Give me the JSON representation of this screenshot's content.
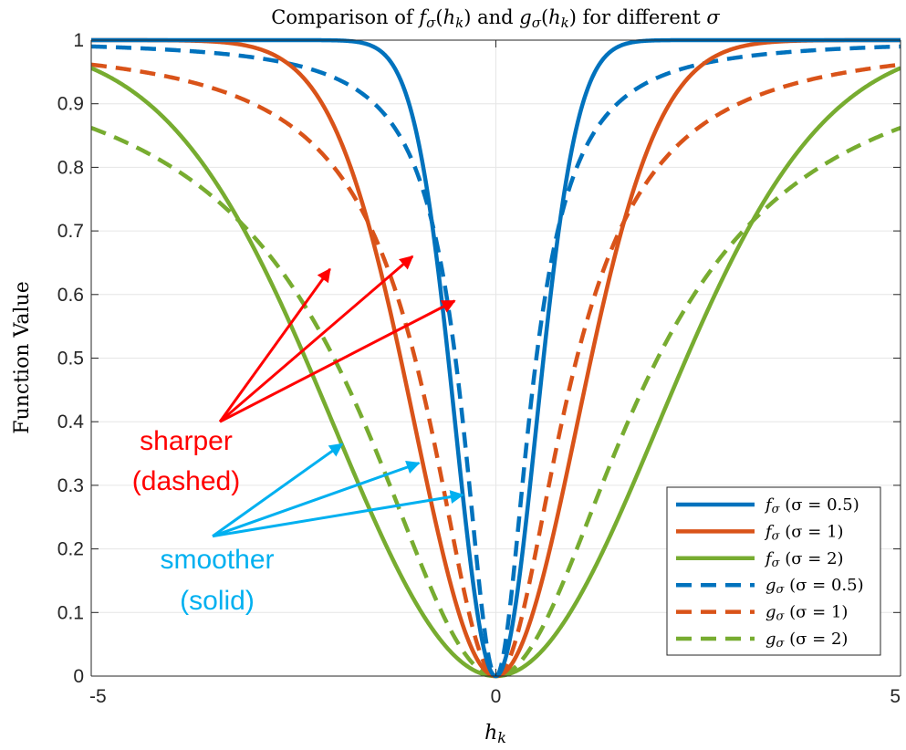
{
  "chart_data": {
    "type": "line",
    "title": "Comparison of fσ(hk) and gσ(hk) for different σ",
    "xlabel": "hk",
    "ylabel": "Function Value",
    "xlim": [
      -5,
      5
    ],
    "ylim": [
      0,
      1
    ],
    "xticks": [
      "-5",
      "0",
      "5"
    ],
    "yticks": [
      "0",
      "0.1",
      "0.2",
      "0.3",
      "0.4",
      "0.5",
      "0.6",
      "0.7",
      "0.8",
      "0.9",
      "1"
    ],
    "grid": true,
    "legend_position": "bottom-right",
    "series": [
      {
        "name": "fσ (σ = 0.5)",
        "family": "f",
        "sigma": 0.5,
        "color": "#0072BD",
        "style": "solid"
      },
      {
        "name": "fσ (σ = 1)",
        "family": "f",
        "sigma": 1,
        "color": "#D95319",
        "style": "solid"
      },
      {
        "name": "fσ (σ = 2)",
        "family": "f",
        "sigma": 2,
        "color": "#77AC30",
        "style": "solid"
      },
      {
        "name": "gσ (σ = 0.5)",
        "family": "g",
        "sigma": 0.5,
        "color": "#0072BD",
        "style": "dashed"
      },
      {
        "name": "gσ (σ = 1)",
        "family": "g",
        "sigma": 1,
        "color": "#D95319",
        "style": "dashed"
      },
      {
        "name": "gσ (σ = 2)",
        "family": "g",
        "sigma": 2,
        "color": "#77AC30",
        "style": "dashed"
      }
    ],
    "annotations": [
      {
        "text_lines": [
          "sharper",
          "(dashed)"
        ],
        "color": "#FF0000",
        "arrow_tail": [
          -3.41,
          0.4
        ],
        "arrow_heads": [
          [
            -2.05,
            0.64
          ],
          [
            -1.03,
            0.66
          ],
          [
            -0.51,
            0.59
          ]
        ]
      },
      {
        "text_lines": [
          "smoother",
          "(solid)"
        ],
        "color": "#00B0F0",
        "arrow_tail": [
          -3.5,
          0.22
        ],
        "arrow_heads": [
          [
            -1.9,
            0.365
          ],
          [
            -0.95,
            0.335
          ],
          [
            -0.41,
            0.285
          ]
        ]
      }
    ]
  }
}
